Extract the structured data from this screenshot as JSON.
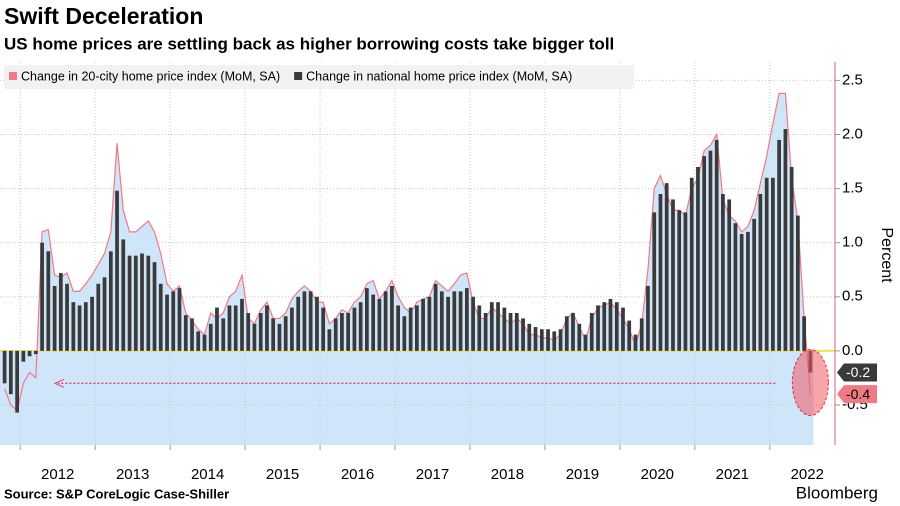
{
  "chart_data": {
    "type": "bar_area",
    "title": "Swift Deceleration",
    "subtitle": "US home prices are settling back as higher borrowing costs take bigger toll",
    "source": "Source: S&P CoreLogic Case-Shiller",
    "brand": "Bloomberg",
    "ylabel": "Percent",
    "x": [
      2011.75,
      2011.833,
      2011.917,
      2012,
      2012.083,
      2012.167,
      2012.25,
      2012.333,
      2012.417,
      2012.5,
      2012.583,
      2012.667,
      2012.75,
      2012.833,
      2012.917,
      2013,
      2013.083,
      2013.167,
      2013.25,
      2013.333,
      2013.417,
      2013.5,
      2013.583,
      2013.667,
      2013.75,
      2013.833,
      2013.917,
      2014,
      2014.083,
      2014.167,
      2014.25,
      2014.333,
      2014.417,
      2014.5,
      2014.583,
      2014.667,
      2014.75,
      2014.833,
      2014.917,
      2015,
      2015.083,
      2015.167,
      2015.25,
      2015.333,
      2015.417,
      2015.5,
      2015.583,
      2015.667,
      2015.75,
      2015.833,
      2015.917,
      2016,
      2016.083,
      2016.167,
      2016.25,
      2016.333,
      2016.417,
      2016.5,
      2016.583,
      2016.667,
      2016.75,
      2016.833,
      2016.917,
      2017,
      2017.083,
      2017.167,
      2017.25,
      2017.333,
      2017.417,
      2017.5,
      2017.583,
      2017.667,
      2017.75,
      2017.833,
      2017.917,
      2018,
      2018.083,
      2018.167,
      2018.25,
      2018.333,
      2018.417,
      2018.5,
      2018.583,
      2018.667,
      2018.75,
      2018.833,
      2018.917,
      2019,
      2019.083,
      2019.167,
      2019.25,
      2019.333,
      2019.417,
      2019.5,
      2019.583,
      2019.667,
      2019.75,
      2019.833,
      2019.917,
      2020,
      2020.083,
      2020.167,
      2020.25,
      2020.333,
      2020.417,
      2020.5,
      2020.583,
      2020.667,
      2020.75,
      2020.833,
      2020.917,
      2021,
      2021.083,
      2021.167,
      2021.25,
      2021.333,
      2021.417,
      2021.5,
      2021.583,
      2021.667,
      2021.75,
      2021.833,
      2021.917,
      2022,
      2022.083,
      2022.167,
      2022.25,
      2022.333,
      2022.417,
      2022.5
    ],
    "series": [
      {
        "name": "Change in 20-city home price index (MoM, SA)",
        "color": "#f07a84",
        "fill": "#cfe5fa",
        "kind": "area",
        "values": [
          -0.35,
          -0.5,
          -0.55,
          -0.3,
          -0.2,
          -0.25,
          1.1,
          1.12,
          0.7,
          0.68,
          0.72,
          0.55,
          0.55,
          0.62,
          0.7,
          0.8,
          0.9,
          1.1,
          1.92,
          1.3,
          1.1,
          1.1,
          1.15,
          1.2,
          1.1,
          0.9,
          0.62,
          0.55,
          0.6,
          0.35,
          0.28,
          0.2,
          0.15,
          0.35,
          0.3,
          0.35,
          0.5,
          0.55,
          0.7,
          0.3,
          0.25,
          0.38,
          0.45,
          0.3,
          0.3,
          0.35,
          0.48,
          0.55,
          0.6,
          0.55,
          0.45,
          0.45,
          0.25,
          0.3,
          0.38,
          0.35,
          0.45,
          0.5,
          0.62,
          0.65,
          0.48,
          0.55,
          0.65,
          0.5,
          0.4,
          0.35,
          0.45,
          0.48,
          0.5,
          0.65,
          0.6,
          0.55,
          0.62,
          0.7,
          0.72,
          0.45,
          0.3,
          0.3,
          0.4,
          0.35,
          0.3,
          0.25,
          0.3,
          0.25,
          0.15,
          0.15,
          0.12,
          0.12,
          0.1,
          0.15,
          0.3,
          0.35,
          0.22,
          0.1,
          0.3,
          0.4,
          0.42,
          0.45,
          0.38,
          0.3,
          0.2,
          0.05,
          0.25,
          0.75,
          1.5,
          1.62,
          1.45,
          1.3,
          1.3,
          1.25,
          1.5,
          1.6,
          1.85,
          1.9,
          2.0,
          1.4,
          1.25,
          1.2,
          1.1,
          1.15,
          1.3,
          1.55,
          1.8,
          2.1,
          2.38,
          2.38,
          1.6,
          1.2,
          0.3,
          -0.4
        ]
      },
      {
        "name": "Change in national home price index (MoM, SA)",
        "color": "#3a3a3a",
        "kind": "bar",
        "values": [
          -0.3,
          -0.4,
          -0.57,
          -0.1,
          -0.05,
          -0.03,
          1.0,
          0.92,
          0.6,
          0.72,
          0.62,
          0.45,
          0.42,
          0.45,
          0.5,
          0.62,
          0.68,
          0.92,
          1.48,
          1.03,
          0.88,
          0.88,
          0.9,
          0.88,
          0.82,
          0.62,
          0.52,
          0.55,
          0.58,
          0.33,
          0.3,
          0.18,
          0.15,
          0.25,
          0.4,
          0.3,
          0.42,
          0.42,
          0.48,
          0.35,
          0.25,
          0.35,
          0.42,
          0.3,
          0.25,
          0.32,
          0.4,
          0.5,
          0.55,
          0.55,
          0.5,
          0.4,
          0.2,
          0.3,
          0.35,
          0.35,
          0.4,
          0.45,
          0.58,
          0.52,
          0.48,
          0.55,
          0.6,
          0.42,
          0.32,
          0.4,
          0.42,
          0.48,
          0.5,
          0.62,
          0.55,
          0.5,
          0.55,
          0.55,
          0.58,
          0.5,
          0.42,
          0.35,
          0.45,
          0.45,
          0.4,
          0.35,
          0.35,
          0.3,
          0.25,
          0.22,
          0.2,
          0.2,
          0.18,
          0.2,
          0.32,
          0.35,
          0.25,
          0.15,
          0.35,
          0.42,
          0.45,
          0.48,
          0.45,
          0.4,
          0.28,
          0.15,
          0.3,
          0.6,
          1.28,
          1.45,
          1.55,
          1.4,
          1.3,
          1.28,
          1.6,
          1.7,
          1.8,
          1.85,
          1.95,
          1.45,
          1.4,
          1.18,
          1.08,
          1.1,
          1.22,
          1.45,
          1.6,
          1.6,
          1.95,
          2.05,
          1.7,
          1.25,
          0.32,
          -0.2
        ]
      }
    ],
    "xlim": [
      2011.73,
      2022.87
    ],
    "ylim": [
      -0.87,
      2.67
    ],
    "xticks": [
      2012,
      2013,
      2014,
      2015,
      2016,
      2017,
      2018,
      2019,
      2020,
      2021,
      2022
    ],
    "yticks": [
      -0.5,
      {
        "value": 0,
        "label": "0.0"
      },
      0.5,
      {
        "value": 1,
        "label": "1.0"
      },
      1.5,
      {
        "value": 2,
        "label": "2.0"
      },
      2.5
    ],
    "grid": true
  }
}
